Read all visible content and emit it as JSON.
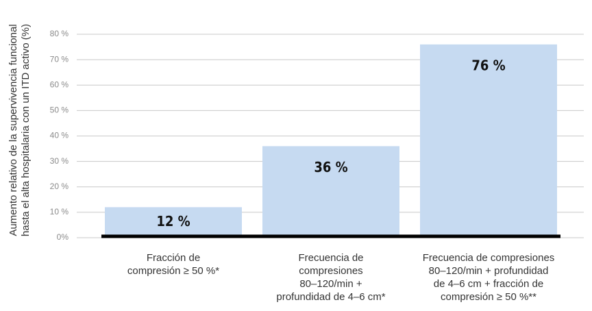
{
  "chart_data": {
    "type": "bar",
    "ylabel": [
      "Aumento relativo de la supervivencia funcional",
      "hasta el alta hospitalaria con un ITD activo (%)"
    ],
    "categories": [
      [
        "Fracción de",
        "compresión ≥ 50 %*"
      ],
      [
        "Frecuencia de",
        "compresiones",
        "80–120/min +",
        "profundidad de 4–6 cm*"
      ],
      [
        "Frecuencia de compresiones",
        "80–120/min + profundidad",
        "de 4–6 cm + fracción de",
        "compresión ≥ 50 %**"
      ]
    ],
    "values": [
      12,
      36,
      76
    ],
    "value_labels": [
      "12 %",
      "36 %",
      "76 %"
    ],
    "color": "#c6daf1",
    "ylim": [
      0,
      80
    ],
    "yticks": [
      {
        "value": 0,
        "label": "0%"
      },
      {
        "value": 10,
        "label": "10 %"
      },
      {
        "value": 20,
        "label": "20 %"
      },
      {
        "value": 30,
        "label": "30 %"
      },
      {
        "value": 40,
        "label": "40 %"
      },
      {
        "value": 50,
        "label": "50 %"
      },
      {
        "value": 60,
        "label": "60 %"
      },
      {
        "value": 70,
        "label": "70 %"
      },
      {
        "value": 80,
        "label": "80 %"
      }
    ],
    "grid": true
  }
}
